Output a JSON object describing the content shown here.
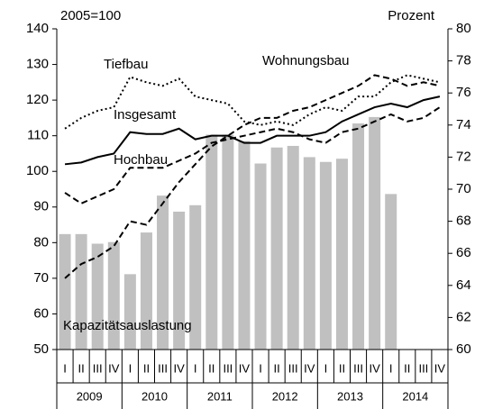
{
  "chart_data": {
    "type": "bar-line",
    "left_axis_label": "2005=100",
    "right_axis_label": "Prozent",
    "categories": [
      "I",
      "II",
      "III",
      "IV",
      "I",
      "II",
      "III",
      "IV",
      "I",
      "II",
      "III",
      "IV",
      "I",
      "II",
      "III",
      "IV",
      "I",
      "II",
      "III",
      "IV",
      "I",
      "II",
      "III",
      "IV"
    ],
    "years": [
      "2009",
      "2010",
      "2011",
      "2012",
      "2013",
      "2014"
    ],
    "ylim": [
      50,
      140
    ],
    "yticks": [
      50,
      60,
      70,
      80,
      90,
      100,
      110,
      120,
      130,
      140
    ],
    "y2lim": [
      60,
      80
    ],
    "y2ticks": [
      60,
      62,
      64,
      66,
      68,
      70,
      72,
      74,
      76,
      78,
      80
    ],
    "series": [
      {
        "name": "Kapazitätsauslastung",
        "type": "bar",
        "axis": "y2",
        "color": "#c0c0c0",
        "values": [
          67.2,
          67.2,
          66.6,
          66.7,
          64.7,
          67.3,
          69.6,
          68.6,
          69.0,
          73.4,
          73.4,
          73.0,
          71.6,
          72.6,
          72.7,
          72.0,
          71.7,
          71.9,
          74.1,
          74.5,
          69.7,
          null,
          null,
          null
        ]
      },
      {
        "name": "Tiefbau",
        "type": "line",
        "dash": "dotted",
        "color": "#000000",
        "values": [
          112,
          115,
          117,
          118,
          126.5,
          125,
          124,
          126,
          121,
          120,
          119,
          114,
          113,
          114,
          113,
          116,
          118,
          117,
          121,
          121,
          125,
          127,
          126,
          125
        ]
      },
      {
        "name": "Wohnungsbau",
        "type": "line",
        "dash": "dashed",
        "color": "#000000",
        "values": [
          70,
          74,
          76,
          79,
          86,
          85,
          91,
          97,
          102,
          107,
          110,
          113,
          115,
          115,
          117,
          118,
          120,
          122,
          124,
          127,
          126,
          124,
          125,
          124
        ]
      },
      {
        "name": "Insgesamt",
        "type": "line",
        "dash": "solid",
        "color": "#000000",
        "values": [
          102,
          102.5,
          104,
          105,
          111,
          110.5,
          110.5,
          112,
          109,
          110,
          110,
          108,
          108,
          110,
          110,
          110,
          111,
          114,
          116,
          118,
          119,
          118,
          120,
          121
        ]
      },
      {
        "name": "Hochbau",
        "type": "line",
        "dash": "dashed",
        "color": "#000000",
        "values": [
          94,
          91,
          93,
          95,
          101,
          101,
          101,
          103,
          105,
          108,
          109,
          110,
          111,
          112,
          111,
          109,
          108,
          111,
          112,
          114,
          116,
          114,
          115,
          118
        ]
      }
    ]
  }
}
